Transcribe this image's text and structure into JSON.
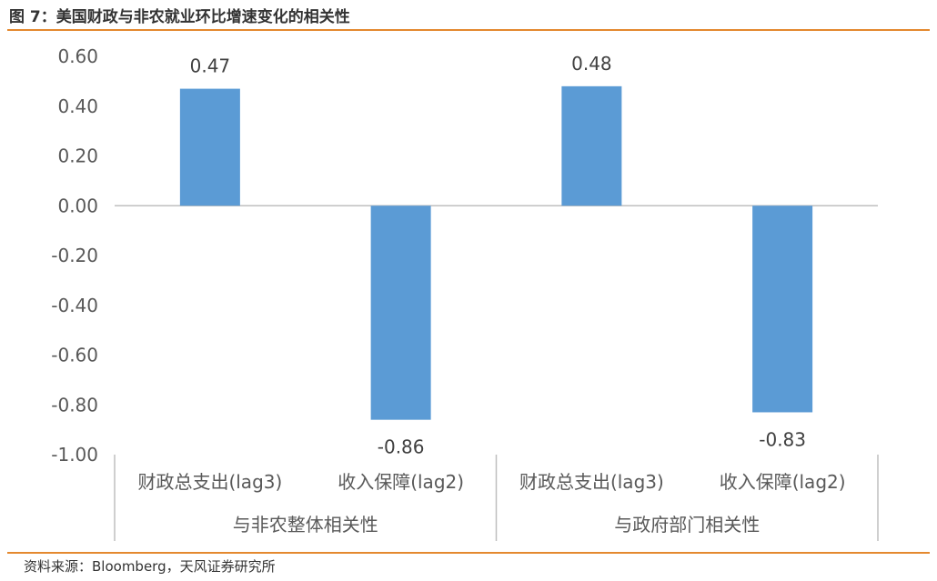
{
  "figure": {
    "title": "图 7：美国财政与非农就业环比增速变化的相关性",
    "source": "资料来源：Bloomberg，天风证券研究所",
    "accent_color": "#E4892F"
  },
  "chart_data": {
    "type": "bar",
    "title": "",
    "xlabel": "",
    "ylabel": "",
    "ylim": [
      -1.0,
      0.6
    ],
    "y_ticks": [
      "0.60",
      "0.40",
      "0.20",
      "0.00",
      "-0.20",
      "-0.40",
      "-0.60",
      "-0.80",
      "-1.00"
    ],
    "categories": [
      "财政总支出(lag3)",
      "收入保障(lag2)",
      "财政总支出(lag3)",
      "收入保障(lag2)"
    ],
    "groups": [
      "与非农整体相关性",
      "与政府部门相关性"
    ],
    "values": [
      0.47,
      -0.86,
      0.48,
      -0.83
    ],
    "data_labels": [
      "0.47",
      "-0.86",
      "0.48",
      "-0.83"
    ],
    "bar_color": "#5B9BD5",
    "grid": false,
    "legend": "none"
  }
}
